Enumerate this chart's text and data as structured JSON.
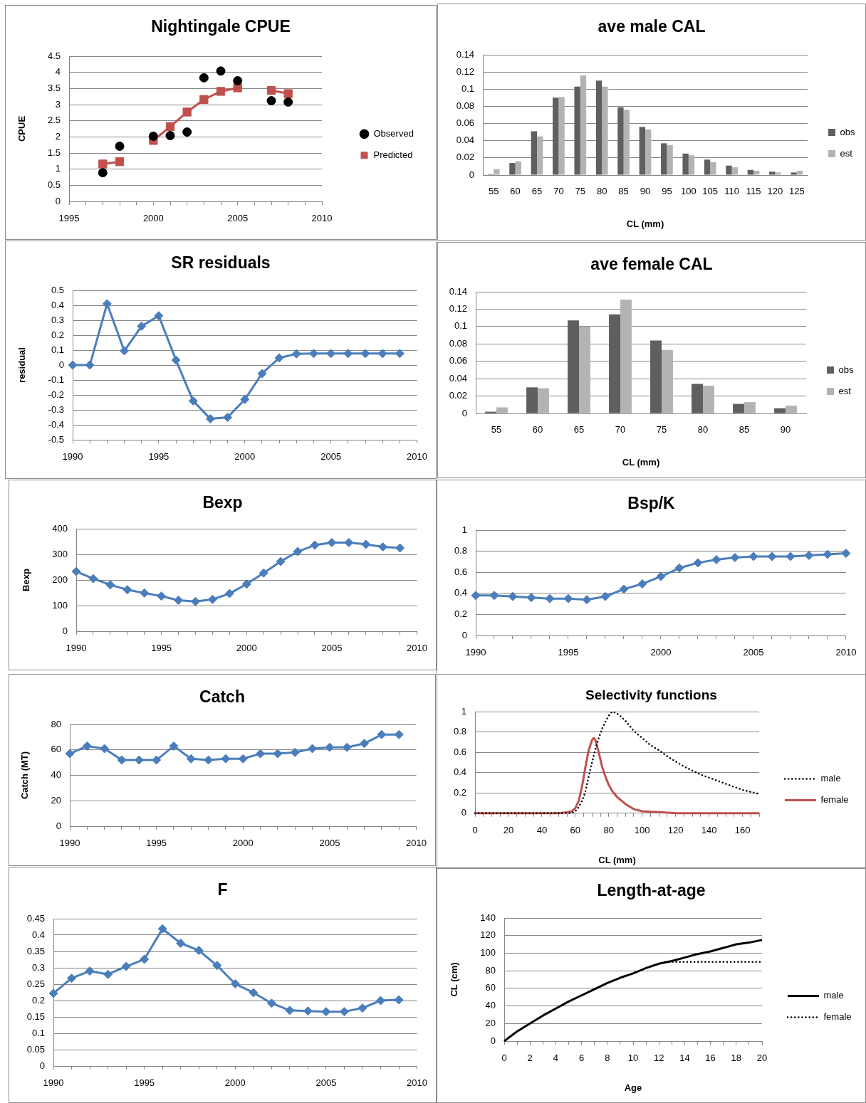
{
  "chart_data": [
    {
      "type": "line",
      "title": "Nightingale CPUE",
      "ylabel": "CPUE",
      "series": [
        {
          "name": "Observed",
          "type": "scatter",
          "color": "#000000",
          "marker": "circle",
          "x": [
            1997,
            1998,
            2000,
            2001,
            2002,
            2003,
            2004,
            2005,
            2007,
            2008
          ],
          "values": [
            0.89,
            1.71,
            2.02,
            2.04,
            2.15,
            3.83,
            4.04,
            3.74,
            3.12,
            3.08
          ]
        },
        {
          "name": "Predicted",
          "type": "line",
          "color": "#c0504d",
          "marker": "square",
          "x": [
            1997,
            1998,
            1999,
            2000,
            2001,
            2002,
            2003,
            2004,
            2005,
            2006,
            2007,
            2008
          ],
          "values": [
            1.16,
            1.23,
            null,
            1.89,
            2.32,
            2.77,
            3.16,
            3.41,
            3.52,
            null,
            3.44,
            3.34
          ]
        }
      ],
      "xlim": [
        1995,
        2010
      ],
      "xticks": [
        1995,
        {
          "value": 1996,
          "label": null
        },
        {
          "value": 1997,
          "label": null
        },
        {
          "value": 1998,
          "label": null
        },
        {
          "value": 1999,
          "label": null
        },
        2000,
        {
          "value": 2001,
          "label": null
        },
        {
          "value": 2002,
          "label": null
        },
        {
          "value": 2003,
          "label": null
        },
        {
          "value": 2004,
          "label": null
        },
        2005,
        {
          "value": 2006,
          "label": null
        },
        {
          "value": 2007,
          "label": null
        },
        {
          "value": 2008,
          "label": null
        },
        {
          "value": 2009,
          "label": null
        },
        2010
      ],
      "ylim": [
        0,
        4.5
      ],
      "yticks": [
        0,
        0.5,
        1,
        1.5,
        2,
        2.5,
        3,
        3.5,
        4,
        4.5
      ],
      "grid": "y",
      "legend": "right"
    },
    {
      "type": "bar",
      "title": "ave male CAL",
      "xlabel": "CL (mm)",
      "categories": [
        "55",
        "60",
        "65",
        "70",
        "75",
        "80",
        "85",
        "90",
        "95",
        "100",
        "105",
        "110",
        "115",
        "120",
        "125"
      ],
      "series": [
        {
          "name": "obs",
          "color": "#5f5f5f",
          "values": [
            0.001,
            0.014,
            0.051,
            0.09,
            0.103,
            0.11,
            0.079,
            0.056,
            0.037,
            0.025,
            0.018,
            0.011,
            0.006,
            0.004,
            0.003
          ]
        },
        {
          "name": "est",
          "color": "#b3b3b3",
          "values": [
            0.007,
            0.016,
            0.045,
            0.091,
            0.116,
            0.103,
            0.076,
            0.053,
            0.035,
            0.023,
            0.015,
            0.009,
            0.005,
            0.003,
            0.005
          ]
        }
      ],
      "ylim": [
        0,
        0.14
      ],
      "yticks": [
        0,
        0.02,
        0.04,
        0.06,
        0.08,
        0.1,
        0.12,
        0.14
      ],
      "grid": "y",
      "legend": "right"
    },
    {
      "type": "line",
      "title": "SR residuals",
      "ylabel": "residual",
      "color": "#4a7ebb",
      "marker": "diamond",
      "x": [
        1990,
        1991,
        1992,
        1993,
        1994,
        1995,
        1996,
        1997,
        1998,
        1999,
        2000,
        2001,
        2002,
        2003,
        2004,
        2005,
        2006,
        2007,
        2008,
        2009
      ],
      "values": [
        0,
        0,
        0.41,
        0.095,
        0.26,
        0.33,
        0.033,
        -0.24,
        -0.36,
        -0.35,
        -0.23,
        -0.057,
        0.048,
        0.075,
        0.077,
        0.077,
        0.077,
        0.077,
        0.077,
        0.077
      ],
      "xlim": [
        1990,
        2010
      ],
      "xticks": [
        1990,
        {
          "value": 1991,
          "label": null
        },
        {
          "value": 1992,
          "label": null
        },
        {
          "value": 1993,
          "label": null
        },
        {
          "value": 1994,
          "label": null
        },
        1995,
        {
          "value": 1996,
          "label": null
        },
        {
          "value": 1997,
          "label": null
        },
        {
          "value": 1998,
          "label": null
        },
        {
          "value": 1999,
          "label": null
        },
        2000,
        {
          "value": 2001,
          "label": null
        },
        {
          "value": 2002,
          "label": null
        },
        {
          "value": 2003,
          "label": null
        },
        {
          "value": 2004,
          "label": null
        },
        2005,
        {
          "value": 2006,
          "label": null
        },
        {
          "value": 2007,
          "label": null
        },
        {
          "value": 2008,
          "label": null
        },
        {
          "value": 2009,
          "label": null
        },
        2010
      ],
      "ylim": [
        -0.5,
        0.5
      ],
      "yticks": [
        -0.5,
        -0.4,
        -0.3,
        -0.2,
        -0.1,
        0,
        0.1,
        0.2,
        0.3,
        0.4,
        0.5
      ],
      "grid": "y"
    },
    {
      "type": "bar",
      "title": "ave female CAL",
      "xlabel": "CL (mm)",
      "categories": [
        "55",
        "60",
        "65",
        "70",
        "75",
        "80",
        "85",
        "90"
      ],
      "series": [
        {
          "name": "obs",
          "color": "#5f5f5f",
          "values": [
            0.002,
            0.03,
            0.107,
            0.114,
            0.084,
            0.034,
            0.011,
            0.006
          ]
        },
        {
          "name": "est",
          "color": "#b3b3b3",
          "values": [
            0.007,
            0.029,
            0.1,
            0.131,
            0.073,
            0.032,
            0.013,
            0.009
          ]
        }
      ],
      "ylim": [
        0,
        0.14
      ],
      "yticks": [
        0,
        0.02,
        0.04,
        0.06,
        0.08,
        0.1,
        0.12,
        0.14
      ],
      "grid": "y",
      "legend": "right"
    },
    {
      "type": "line",
      "title": "Bexp",
      "ylabel": "Bexp",
      "color": "#4a7ebb",
      "marker": "diamond",
      "x": [
        1990,
        1991,
        1992,
        1993,
        1994,
        1995,
        1996,
        1997,
        1998,
        1999,
        2000,
        2001,
        2002,
        2003,
        2004,
        2005,
        2006,
        2007,
        2008,
        2009
      ],
      "values": [
        233,
        205,
        181,
        162,
        149,
        137,
        121,
        116,
        124,
        147,
        184,
        227,
        272,
        311,
        336,
        346,
        346,
        339,
        329,
        325
      ],
      "xlim": [
        1990,
        2010
      ],
      "xticks": [
        1990,
        {
          "value": 1991,
          "label": null
        },
        {
          "value": 1992,
          "label": null
        },
        {
          "value": 1993,
          "label": null
        },
        {
          "value": 1994,
          "label": null
        },
        1995,
        {
          "value": 1996,
          "label": null
        },
        {
          "value": 1997,
          "label": null
        },
        {
          "value": 1998,
          "label": null
        },
        {
          "value": 1999,
          "label": null
        },
        2000,
        {
          "value": 2001,
          "label": null
        },
        {
          "value": 2002,
          "label": null
        },
        {
          "value": 2003,
          "label": null
        },
        {
          "value": 2004,
          "label": null
        },
        2005,
        {
          "value": 2006,
          "label": null
        },
        {
          "value": 2007,
          "label": null
        },
        {
          "value": 2008,
          "label": null
        },
        {
          "value": 2009,
          "label": null
        },
        2010
      ],
      "ylim": [
        0,
        400
      ],
      "yticks": [
        0,
        100,
        200,
        300,
        400
      ],
      "grid": "y"
    },
    {
      "type": "line",
      "title": "Bsp/K",
      "color": "#4a7ebb",
      "marker": "diamond",
      "x": [
        1990,
        1991,
        1992,
        1993,
        1994,
        1995,
        1996,
        1997,
        1998,
        1999,
        2000,
        2001,
        2002,
        2003,
        2004,
        2005,
        2006,
        2007,
        2008,
        2009,
        2010
      ],
      "values": [
        0.38,
        0.38,
        0.37,
        0.36,
        0.35,
        0.35,
        0.34,
        0.37,
        0.44,
        0.49,
        0.56,
        0.64,
        0.69,
        0.72,
        0.74,
        0.75,
        0.75,
        0.75,
        0.76,
        0.77,
        0.78
      ],
      "xlim": [
        1990,
        2010
      ],
      "xticks": [
        1990,
        {
          "value": 1991,
          "label": null
        },
        {
          "value": 1992,
          "label": null
        },
        {
          "value": 1993,
          "label": null
        },
        {
          "value": 1994,
          "label": null
        },
        1995,
        {
          "value": 1996,
          "label": null
        },
        {
          "value": 1997,
          "label": null
        },
        {
          "value": 1998,
          "label": null
        },
        {
          "value": 1999,
          "label": null
        },
        2000,
        {
          "value": 2001,
          "label": null
        },
        {
          "value": 2002,
          "label": null
        },
        {
          "value": 2003,
          "label": null
        },
        {
          "value": 2004,
          "label": null
        },
        2005,
        {
          "value": 2006,
          "label": null
        },
        {
          "value": 2007,
          "label": null
        },
        {
          "value": 2008,
          "label": null
        },
        {
          "value": 2009,
          "label": null
        },
        2010
      ],
      "ylim": [
        0,
        1
      ],
      "yticks": [
        0,
        0.2,
        0.4,
        0.6,
        0.8,
        1
      ],
      "grid": "y"
    },
    {
      "type": "line",
      "title": "Catch",
      "ylabel": "Catch (MT)",
      "color": "#4a7ebb",
      "marker": "diamond",
      "x": [
        1990,
        1991,
        1992,
        1993,
        1994,
        1995,
        1996,
        1997,
        1998,
        1999,
        2000,
        2001,
        2002,
        2003,
        2004,
        2005,
        2006,
        2007,
        2008,
        2009
      ],
      "values": [
        57,
        63,
        61,
        52,
        52,
        52,
        63,
        53,
        52,
        53,
        53,
        57,
        57,
        58,
        61,
        62,
        62,
        65,
        72,
        72
      ],
      "xlim": [
        1990,
        2010
      ],
      "xticks": [
        1990,
        {
          "value": 1991,
          "label": null
        },
        {
          "value": 1992,
          "label": null
        },
        {
          "value": 1993,
          "label": null
        },
        {
          "value": 1994,
          "label": null
        },
        1995,
        {
          "value": 1996,
          "label": null
        },
        {
          "value": 1997,
          "label": null
        },
        {
          "value": 1998,
          "label": null
        },
        {
          "value": 1999,
          "label": null
        },
        2000,
        {
          "value": 2001,
          "label": null
        },
        {
          "value": 2002,
          "label": null
        },
        {
          "value": 2003,
          "label": null
        },
        {
          "value": 2004,
          "label": null
        },
        2005,
        {
          "value": 2006,
          "label": null
        },
        {
          "value": 2007,
          "label": null
        },
        {
          "value": 2008,
          "label": null
        },
        {
          "value": 2009,
          "label": null
        },
        2010
      ],
      "ylim": [
        0,
        80
      ],
      "yticks": [
        0,
        20,
        40,
        60,
        80
      ],
      "grid": "y"
    },
    {
      "type": "line",
      "title": "Selectivity functions",
      "xlabel": "CL (mm)",
      "series": [
        {
          "name": "male",
          "color": "#000000",
          "line_style": "dotted",
          "x": [
            0,
            10,
            20,
            30,
            40,
            50,
            58,
            60,
            62,
            64,
            66,
            68,
            70,
            72,
            74,
            76,
            78,
            80,
            82,
            84,
            86,
            88,
            90,
            95,
            100,
            105,
            110,
            115,
            120,
            125,
            130,
            135,
            140,
            145,
            150,
            155,
            160,
            165,
            170
          ],
          "values": [
            0,
            0,
            0,
            0,
            0,
            0,
            0,
            0.02,
            0.06,
            0.12,
            0.21,
            0.36,
            0.5,
            0.63,
            0.74,
            0.83,
            0.9,
            0.96,
            1,
            0.99,
            0.97,
            0.94,
            0.91,
            0.81,
            0.74,
            0.67,
            0.62,
            0.56,
            0.51,
            0.46,
            0.42,
            0.38,
            0.35,
            0.32,
            0.29,
            0.26,
            0.23,
            0.21,
            0.19
          ]
        },
        {
          "name": "female",
          "color": "#c0504d",
          "line_style": "solid",
          "x": [
            0,
            10,
            20,
            30,
            40,
            50,
            55,
            58,
            60,
            62,
            64,
            66,
            68,
            70,
            71,
            72,
            74,
            76,
            78,
            80,
            82,
            85,
            90,
            95,
            100,
            110,
            120,
            130,
            140,
            150,
            160,
            170
          ],
          "values": [
            0,
            0,
            0,
            0,
            0,
            0,
            0.01,
            0.02,
            0.05,
            0.12,
            0.26,
            0.45,
            0.62,
            0.72,
            0.74,
            0.72,
            0.6,
            0.46,
            0.36,
            0.28,
            0.22,
            0.16,
            0.09,
            0.04,
            0.02,
            0.01,
            0,
            0,
            0,
            0,
            0,
            0
          ]
        }
      ],
      "xlim": [
        0,
        170
      ],
      "xticks": [
        0,
        {
          "value": 5,
          "label": null
        },
        {
          "value": 10,
          "label": null
        },
        {
          "value": 15,
          "label": null
        },
        20,
        {
          "value": 25,
          "label": null
        },
        {
          "value": 30,
          "label": null
        },
        {
          "value": 35,
          "label": null
        },
        40,
        {
          "value": 45,
          "label": null
        },
        {
          "value": 50,
          "label": null
        },
        {
          "value": 55,
          "label": null
        },
        60,
        {
          "value": 65,
          "label": null
        },
        {
          "value": 70,
          "label": null
        },
        {
          "value": 75,
          "label": null
        },
        80,
        {
          "value": 85,
          "label": null
        },
        {
          "value": 90,
          "label": null
        },
        {
          "value": 95,
          "label": null
        },
        100,
        {
          "value": 105,
          "label": null
        },
        {
          "value": 110,
          "label": null
        },
        {
          "value": 115,
          "label": null
        },
        120,
        {
          "value": 125,
          "label": null
        },
        {
          "value": 130,
          "label": null
        },
        {
          "value": 135,
          "label": null
        },
        140,
        {
          "value": 145,
          "label": null
        },
        {
          "value": 150,
          "label": null
        },
        {
          "value": 155,
          "label": null
        },
        160,
        {
          "value": 165,
          "label": null
        },
        {
          "value": 170,
          "label": null
        }
      ],
      "ylim": [
        0,
        1
      ],
      "yticks": [
        0,
        0.2,
        0.4,
        0.6,
        0.8,
        1
      ],
      "grid": "y",
      "legend": "right"
    },
    {
      "type": "line",
      "title": "F",
      "color": "#4a7ebb",
      "marker": "diamond",
      "x": [
        1990,
        1991,
        1992,
        1993,
        1994,
        1995,
        1996,
        1997,
        1998,
        1999,
        2000,
        2001,
        2002,
        2003,
        2004,
        2005,
        2006,
        2007,
        2008,
        2009
      ],
      "values": [
        0.222,
        0.268,
        0.29,
        0.28,
        0.304,
        0.326,
        0.419,
        0.375,
        0.353,
        0.307,
        0.251,
        0.224,
        0.192,
        0.17,
        0.168,
        0.166,
        0.166,
        0.177,
        0.2,
        0.202
      ],
      "xlim": [
        1990,
        2010
      ],
      "xticks": [
        1990,
        {
          "value": 1991,
          "label": null
        },
        {
          "value": 1992,
          "label": null
        },
        {
          "value": 1993,
          "label": null
        },
        {
          "value": 1994,
          "label": null
        },
        1995,
        {
          "value": 1996,
          "label": null
        },
        {
          "value": 1997,
          "label": null
        },
        {
          "value": 1998,
          "label": null
        },
        {
          "value": 1999,
          "label": null
        },
        2000,
        {
          "value": 2001,
          "label": null
        },
        {
          "value": 2002,
          "label": null
        },
        {
          "value": 2003,
          "label": null
        },
        {
          "value": 2004,
          "label": null
        },
        2005,
        {
          "value": 2006,
          "label": null
        },
        {
          "value": 2007,
          "label": null
        },
        {
          "value": 2008,
          "label": null
        },
        {
          "value": 2009,
          "label": null
        },
        2010
      ],
      "ylim": [
        0,
        0.45
      ],
      "yticks": [
        0,
        0.05,
        0.1,
        0.15,
        0.2,
        0.25,
        0.3,
        0.35,
        0.4,
        0.45
      ],
      "grid": "y"
    },
    {
      "type": "line",
      "title": "Length-at-age",
      "xlabel": "Age",
      "ylabel": "CL (cm)",
      "series": [
        {
          "name": "male",
          "color": "#000000",
          "line_style": "solid",
          "x": [
            0,
            1,
            2,
            3,
            4,
            5,
            6,
            7,
            8,
            9,
            10,
            11,
            12,
            13,
            14,
            15,
            16,
            17,
            18,
            19,
            20
          ],
          "values": [
            0,
            11,
            20,
            29,
            37,
            45,
            52,
            59,
            66,
            72,
            77,
            83,
            88,
            91,
            95,
            99,
            102,
            106,
            110,
            112,
            115
          ]
        },
        {
          "name": "female",
          "color": "#000000",
          "line_style": "dotted",
          "x": [
            12.5,
            20
          ],
          "values": [
            90,
            90
          ]
        }
      ],
      "xlim": [
        0,
        20
      ],
      "xticks": [
        0,
        {
          "value": 1,
          "label": null
        },
        2,
        {
          "value": 3,
          "label": null
        },
        4,
        {
          "value": 5,
          "label": null
        },
        6,
        {
          "value": 7,
          "label": null
        },
        8,
        {
          "value": 9,
          "label": null
        },
        10,
        {
          "value": 11,
          "label": null
        },
        12,
        {
          "value": 13,
          "label": null
        },
        14,
        {
          "value": 15,
          "label": null
        },
        16,
        {
          "value": 17,
          "label": null
        },
        18,
        {
          "value": 19,
          "label": null
        },
        20
      ],
      "ylim": [
        0,
        140
      ],
      "yticks": [
        0,
        20,
        40,
        60,
        80,
        100,
        120,
        140
      ],
      "grid": "y",
      "legend": "right"
    }
  ]
}
